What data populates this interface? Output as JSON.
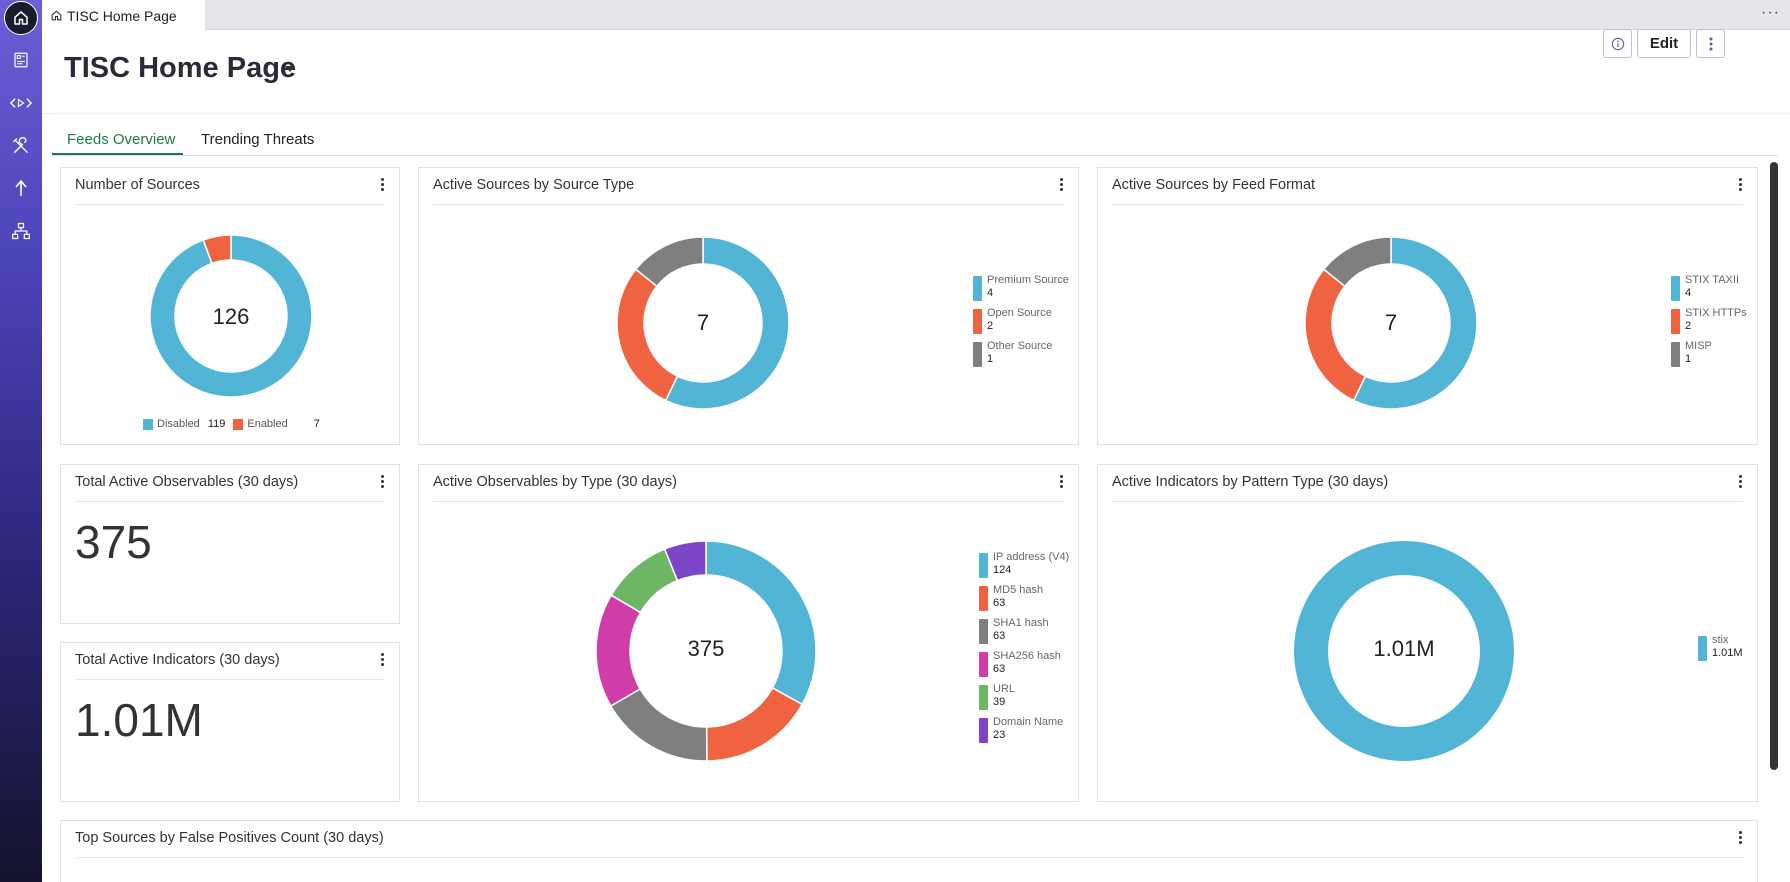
{
  "colors": {
    "blue": "#53b5d6",
    "orange": "#ef6341",
    "gray": "#7f7f7f",
    "magenta": "#cf3ea8",
    "green": "#6db764",
    "purple": "#7d45c7"
  },
  "sidebar": {
    "items": [
      {
        "icon": "home-icon"
      },
      {
        "icon": "dashboard-icon"
      },
      {
        "icon": "code-arrows-icon"
      },
      {
        "icon": "tools-icon"
      },
      {
        "icon": "upload-arrow-icon"
      },
      {
        "icon": "network-hierarchy-icon"
      }
    ]
  },
  "window": {
    "tab_title": "TISC Home Page",
    "more": "···"
  },
  "header": {
    "title": "TISC Home Page",
    "edit_label": "Edit"
  },
  "subtabs": [
    {
      "label": "Feeds Overview",
      "active": true
    },
    {
      "label": "Trending Threats",
      "active": false
    }
  ],
  "cards": {
    "number_of_sources": {
      "title": "Number of Sources",
      "center": "126",
      "chart_data": {
        "type": "pie",
        "categories": [
          "Disabled",
          "Enabled"
        ],
        "values": [
          119,
          7
        ]
      }
    },
    "sources_by_type": {
      "title": "Active Sources by Source Type",
      "center": "7",
      "chart_data": {
        "type": "pie",
        "categories": [
          "Premium Source",
          "Open Source",
          "Other Source"
        ],
        "values": [
          4,
          2,
          1
        ]
      }
    },
    "sources_by_format": {
      "title": "Active Sources by Feed Format",
      "center": "7",
      "chart_data": {
        "type": "pie",
        "categories": [
          "STIX TAXII",
          "STIX HTTPs",
          "MISP"
        ],
        "values": [
          4,
          2,
          1
        ]
      }
    },
    "total_observables": {
      "title": "Total Active Observables (30 days)",
      "value": "375"
    },
    "total_indicators": {
      "title": "Total Active Indicators (30 days)",
      "value": "1.01M"
    },
    "observables_by_type": {
      "title": "Active Observables by Type (30 days)",
      "center": "375",
      "chart_data": {
        "type": "pie",
        "categories": [
          "IP address (V4)",
          "MD5 hash",
          "SHA1 hash",
          "SHA256 hash",
          "URL",
          "Domain Name"
        ],
        "values": [
          124,
          63,
          63,
          63,
          39,
          23
        ]
      }
    },
    "indicators_by_pattern": {
      "title": "Active Indicators by Pattern Type (30 days)",
      "center": "1.01M",
      "chart_data": {
        "type": "pie",
        "categories": [
          "stix"
        ],
        "values": [
          1010000
        ],
        "value_labels": [
          "1.01M"
        ]
      }
    },
    "top_false_positives": {
      "title": "Top Sources by False Positives Count (30 days)"
    }
  }
}
